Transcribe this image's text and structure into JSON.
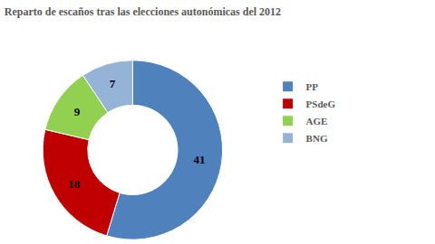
{
  "chart_data": {
    "type": "pie",
    "title": "Reparto de escaños tras las elecciones autonómicas del 2012",
    "categories": [
      "PP",
      "PSdeG",
      "AGE",
      "BNG"
    ],
    "values": [
      41,
      18,
      9,
      7
    ],
    "colors": [
      "#4f81bd",
      "#c00000",
      "#92d050",
      "#95b3d7"
    ],
    "data_labels": true,
    "legend": "right"
  }
}
